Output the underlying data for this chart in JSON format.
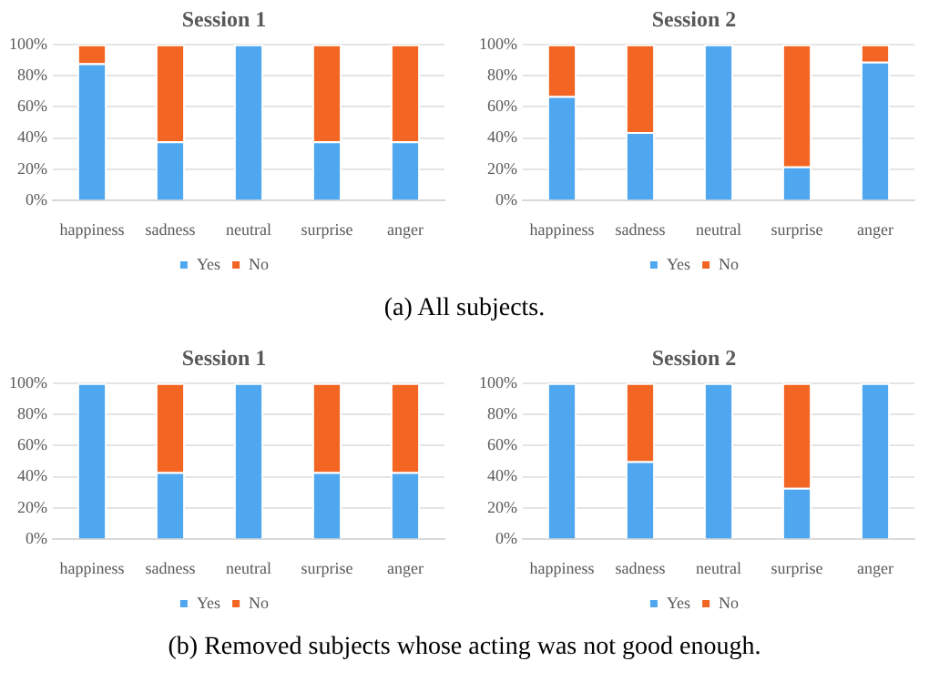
{
  "chart_data": [
    {
      "type": "bar",
      "title": "Session 1",
      "categories": [
        "happiness",
        "sadness",
        "neutral",
        "surprise",
        "anger"
      ],
      "stacked": true,
      "ylim": [
        0,
        100
      ],
      "yticks": [
        {
          "value": 0,
          "label": "0%"
        },
        {
          "value": 20,
          "label": "20%"
        },
        {
          "value": 40,
          "label": "40%"
        },
        {
          "value": 60,
          "label": "60%"
        },
        {
          "value": 80,
          "label": "80%"
        },
        {
          "value": 100,
          "label": "100%"
        }
      ],
      "grid": "y",
      "legend": "bottom",
      "series": [
        {
          "name": "Yes",
          "color": "#4fa7ef",
          "values": [
            88,
            38,
            100,
            38,
            38
          ]
        },
        {
          "name": "No",
          "color": "#f26522",
          "values": [
            12,
            62,
            0,
            62,
            62
          ]
        }
      ]
    },
    {
      "type": "bar",
      "title": "Session 2",
      "categories": [
        "happiness",
        "sadness",
        "neutral",
        "surprise",
        "anger"
      ],
      "stacked": true,
      "ylim": [
        0,
        100
      ],
      "yticks": [
        {
          "value": 0,
          "label": "0%"
        },
        {
          "value": 20,
          "label": "20%"
        },
        {
          "value": 40,
          "label": "40%"
        },
        {
          "value": 60,
          "label": "60%"
        },
        {
          "value": 80,
          "label": "80%"
        },
        {
          "value": 100,
          "label": "100%"
        }
      ],
      "grid": "y",
      "legend": "bottom",
      "annotations": [
        "(a) All subjects."
      ],
      "series": [
        {
          "name": "Yes",
          "color": "#4fa7ef",
          "values": [
            67,
            44,
            100,
            22,
            89
          ]
        },
        {
          "name": "No",
          "color": "#f26522",
          "values": [
            33,
            56,
            0,
            78,
            11
          ]
        }
      ]
    },
    {
      "type": "bar",
      "title": "Session 1",
      "categories": [
        "happiness",
        "sadness",
        "neutral",
        "surprise",
        "anger"
      ],
      "stacked": true,
      "ylim": [
        0,
        100
      ],
      "yticks": [
        {
          "value": 0,
          "label": "0%"
        },
        {
          "value": 20,
          "label": "20%"
        },
        {
          "value": 40,
          "label": "40%"
        },
        {
          "value": 60,
          "label": "60%"
        },
        {
          "value": 80,
          "label": "80%"
        },
        {
          "value": 100,
          "label": "100%"
        }
      ],
      "grid": "y",
      "legend": "bottom",
      "series": [
        {
          "name": "Yes",
          "color": "#4fa7ef",
          "values": [
            100,
            43,
            100,
            43,
            43
          ]
        },
        {
          "name": "No",
          "color": "#f26522",
          "values": [
            0,
            57,
            0,
            57,
            57
          ]
        }
      ]
    },
    {
      "type": "bar",
      "title": "Session 2",
      "categories": [
        "happiness",
        "sadness",
        "neutral",
        "surprise",
        "anger"
      ],
      "stacked": true,
      "ylim": [
        0,
        100
      ],
      "yticks": [
        {
          "value": 0,
          "label": "0%"
        },
        {
          "value": 20,
          "label": "20%"
        },
        {
          "value": 40,
          "label": "40%"
        },
        {
          "value": 60,
          "label": "60%"
        },
        {
          "value": 80,
          "label": "80%"
        },
        {
          "value": 100,
          "label": "100%"
        }
      ],
      "grid": "y",
      "legend": "bottom",
      "annotations": [
        "(b) Removed subjects whose acting was not good enough."
      ],
      "series": [
        {
          "name": "Yes",
          "color": "#4fa7ef",
          "values": [
            100,
            50,
            100,
            33,
            100
          ]
        },
        {
          "name": "No",
          "color": "#f26522",
          "values": [
            0,
            50,
            0,
            67,
            0
          ]
        }
      ]
    }
  ]
}
